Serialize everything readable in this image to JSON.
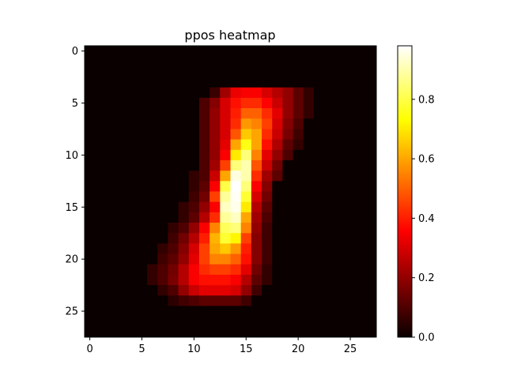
{
  "chart_data": {
    "type": "heatmap",
    "title": "ppos heatmap",
    "colormap": "hot",
    "grid": false,
    "legend": "colorbar-right",
    "rows": 28,
    "cols": 28,
    "xlim": [
      -0.5,
      27.5
    ],
    "ylim": [
      27.5,
      -0.5
    ],
    "x_ticks": [
      "0",
      "5",
      "10",
      "15",
      "20",
      "25"
    ],
    "y_ticks": [
      "0",
      "5",
      "10",
      "15",
      "20",
      "25"
    ],
    "colorbar": {
      "range": [
        0,
        0.98
      ],
      "ticks": [
        "0.0",
        "0.2",
        "0.4",
        "0.6",
        "0.8"
      ]
    },
    "row_values": [
      {
        "row": 4,
        "values": [
          [
            12,
            0.07
          ],
          [
            13,
            0.22
          ],
          [
            14,
            0.33
          ],
          [
            15,
            0.35
          ],
          [
            16,
            0.35
          ],
          [
            17,
            0.3
          ],
          [
            18,
            0.25
          ],
          [
            19,
            0.2
          ],
          [
            20,
            0.12
          ],
          [
            21,
            0.06
          ]
        ]
      },
      {
        "row": 5,
        "values": [
          [
            11,
            0.1
          ],
          [
            12,
            0.18
          ],
          [
            13,
            0.3
          ],
          [
            14,
            0.38
          ],
          [
            15,
            0.42
          ],
          [
            16,
            0.42
          ],
          [
            17,
            0.36
          ],
          [
            18,
            0.28
          ],
          [
            19,
            0.2
          ],
          [
            20,
            0.12
          ],
          [
            21,
            0.06
          ]
        ]
      },
      {
        "row": 6,
        "values": [
          [
            11,
            0.1
          ],
          [
            12,
            0.2
          ],
          [
            13,
            0.3
          ],
          [
            14,
            0.4
          ],
          [
            15,
            0.5
          ],
          [
            16,
            0.5
          ],
          [
            17,
            0.42
          ],
          [
            18,
            0.32
          ],
          [
            19,
            0.2
          ],
          [
            20,
            0.12
          ],
          [
            21,
            0.06
          ]
        ]
      },
      {
        "row": 7,
        "values": [
          [
            11,
            0.1
          ],
          [
            12,
            0.2
          ],
          [
            13,
            0.3
          ],
          [
            14,
            0.42
          ],
          [
            15,
            0.58
          ],
          [
            16,
            0.55
          ],
          [
            17,
            0.45
          ],
          [
            18,
            0.3
          ],
          [
            19,
            0.18
          ],
          [
            20,
            0.1
          ]
        ]
      },
      {
        "row": 8,
        "values": [
          [
            11,
            0.1
          ],
          [
            12,
            0.2
          ],
          [
            13,
            0.3
          ],
          [
            14,
            0.48
          ],
          [
            15,
            0.65
          ],
          [
            16,
            0.6
          ],
          [
            17,
            0.42
          ],
          [
            18,
            0.28
          ],
          [
            19,
            0.16
          ],
          [
            20,
            0.08
          ]
        ]
      },
      {
        "row": 9,
        "values": [
          [
            11,
            0.1
          ],
          [
            12,
            0.2
          ],
          [
            13,
            0.32
          ],
          [
            14,
            0.6
          ],
          [
            15,
            0.75
          ],
          [
            16,
            0.6
          ],
          [
            17,
            0.38
          ],
          [
            18,
            0.24
          ],
          [
            19,
            0.12
          ],
          [
            20,
            0.06
          ]
        ]
      },
      {
        "row": 10,
        "values": [
          [
            11,
            0.1
          ],
          [
            12,
            0.2
          ],
          [
            13,
            0.35
          ],
          [
            14,
            0.7
          ],
          [
            15,
            0.85
          ],
          [
            16,
            0.55
          ],
          [
            17,
            0.32
          ],
          [
            18,
            0.2
          ],
          [
            19,
            0.1
          ]
        ]
      },
      {
        "row": 11,
        "values": [
          [
            11,
            0.1
          ],
          [
            12,
            0.22
          ],
          [
            13,
            0.45
          ],
          [
            14,
            0.85
          ],
          [
            15,
            0.9
          ],
          [
            16,
            0.48
          ],
          [
            17,
            0.28
          ],
          [
            18,
            0.15
          ]
        ]
      },
      {
        "row": 12,
        "values": [
          [
            10,
            0.06
          ],
          [
            11,
            0.1
          ],
          [
            12,
            0.28
          ],
          [
            13,
            0.6
          ],
          [
            14,
            0.95
          ],
          [
            15,
            0.9
          ],
          [
            16,
            0.42
          ],
          [
            17,
            0.22
          ],
          [
            18,
            0.12
          ]
        ]
      },
      {
        "row": 13,
        "values": [
          [
            10,
            0.06
          ],
          [
            11,
            0.12
          ],
          [
            12,
            0.35
          ],
          [
            13,
            0.8
          ],
          [
            14,
            0.98
          ],
          [
            15,
            0.85
          ],
          [
            16,
            0.35
          ],
          [
            17,
            0.18
          ]
        ]
      },
      {
        "row": 14,
        "values": [
          [
            10,
            0.08
          ],
          [
            11,
            0.15
          ],
          [
            12,
            0.45
          ],
          [
            13,
            0.88
          ],
          [
            14,
            0.97
          ],
          [
            15,
            0.78
          ],
          [
            16,
            0.3
          ],
          [
            17,
            0.15
          ]
        ]
      },
      {
        "row": 15,
        "values": [
          [
            9,
            0.06
          ],
          [
            10,
            0.1
          ],
          [
            11,
            0.2
          ],
          [
            12,
            0.35
          ],
          [
            13,
            0.92
          ],
          [
            14,
            0.96
          ],
          [
            15,
            0.7
          ],
          [
            16,
            0.25
          ],
          [
            17,
            0.12
          ]
        ]
      },
      {
        "row": 16,
        "values": [
          [
            9,
            0.06
          ],
          [
            10,
            0.12
          ],
          [
            11,
            0.25
          ],
          [
            12,
            0.42
          ],
          [
            13,
            0.88
          ],
          [
            14,
            0.92
          ],
          [
            15,
            0.6
          ],
          [
            16,
            0.22
          ],
          [
            17,
            0.1
          ]
        ]
      },
      {
        "row": 17,
        "values": [
          [
            8,
            0.06
          ],
          [
            9,
            0.1
          ],
          [
            10,
            0.2
          ],
          [
            11,
            0.35
          ],
          [
            12,
            0.55
          ],
          [
            13,
            0.82
          ],
          [
            14,
            0.85
          ],
          [
            15,
            0.55
          ],
          [
            16,
            0.2
          ],
          [
            17,
            0.08
          ]
        ]
      },
      {
        "row": 18,
        "values": [
          [
            8,
            0.08
          ],
          [
            9,
            0.15
          ],
          [
            10,
            0.25
          ],
          [
            11,
            0.4
          ],
          [
            12,
            0.62
          ],
          [
            13,
            0.78
          ],
          [
            14,
            0.72
          ],
          [
            15,
            0.45
          ],
          [
            16,
            0.18
          ],
          [
            17,
            0.08
          ]
        ]
      },
      {
        "row": 19,
        "values": [
          [
            7,
            0.06
          ],
          [
            8,
            0.1
          ],
          [
            9,
            0.18
          ],
          [
            10,
            0.3
          ],
          [
            11,
            0.45
          ],
          [
            12,
            0.6
          ],
          [
            13,
            0.65
          ],
          [
            14,
            0.58
          ],
          [
            15,
            0.4
          ],
          [
            16,
            0.18
          ],
          [
            17,
            0.08
          ]
        ]
      },
      {
        "row": 20,
        "values": [
          [
            7,
            0.08
          ],
          [
            8,
            0.12
          ],
          [
            9,
            0.2
          ],
          [
            10,
            0.32
          ],
          [
            11,
            0.45
          ],
          [
            12,
            0.55
          ],
          [
            13,
            0.55
          ],
          [
            14,
            0.5
          ],
          [
            15,
            0.38
          ],
          [
            16,
            0.18
          ],
          [
            17,
            0.08
          ]
        ]
      },
      {
        "row": 21,
        "values": [
          [
            6,
            0.06
          ],
          [
            7,
            0.1
          ],
          [
            8,
            0.15
          ],
          [
            9,
            0.25
          ],
          [
            10,
            0.35
          ],
          [
            11,
            0.42
          ],
          [
            12,
            0.45
          ],
          [
            13,
            0.45
          ],
          [
            14,
            0.42
          ],
          [
            15,
            0.32
          ],
          [
            16,
            0.15
          ],
          [
            17,
            0.06
          ]
        ]
      },
      {
        "row": 22,
        "values": [
          [
            6,
            0.06
          ],
          [
            7,
            0.1
          ],
          [
            8,
            0.16
          ],
          [
            9,
            0.25
          ],
          [
            10,
            0.35
          ],
          [
            11,
            0.38
          ],
          [
            12,
            0.38
          ],
          [
            13,
            0.38
          ],
          [
            14,
            0.35
          ],
          [
            15,
            0.25
          ],
          [
            16,
            0.12
          ],
          [
            17,
            0.06
          ]
        ]
      },
      {
        "row": 23,
        "values": [
          [
            7,
            0.06
          ],
          [
            8,
            0.1
          ],
          [
            9,
            0.2
          ],
          [
            10,
            0.28
          ],
          [
            11,
            0.32
          ],
          [
            12,
            0.32
          ],
          [
            13,
            0.32
          ],
          [
            14,
            0.3
          ],
          [
            15,
            0.2
          ],
          [
            16,
            0.08
          ]
        ]
      },
      {
        "row": 24,
        "values": [
          [
            8,
            0.05
          ],
          [
            9,
            0.08
          ],
          [
            10,
            0.1
          ],
          [
            11,
            0.12
          ],
          [
            12,
            0.12
          ],
          [
            13,
            0.12
          ],
          [
            14,
            0.12
          ],
          [
            15,
            0.08
          ]
        ]
      }
    ]
  }
}
